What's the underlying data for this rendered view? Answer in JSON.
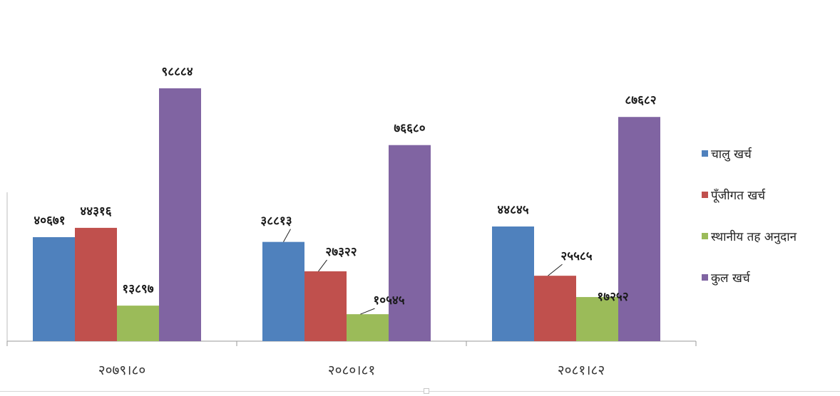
{
  "chart_data": {
    "type": "bar",
    "categories": [
      "२०७९।८०",
      "२०८०।८१",
      "२०८१।८२"
    ],
    "series": [
      {
        "name": "चालु खर्च",
        "color": "#4F81BD",
        "values": [
          40671,
          38813,
          44845
        ],
        "labels": [
          "४०६७१",
          "३८८१३",
          "४४८४५"
        ]
      },
      {
        "name": "पूँजीगत खर्च",
        "color": "#C0504D",
        "values": [
          44316,
          27322,
          25585
        ],
        "labels": [
          "४४३१६",
          "२७३२२",
          "२५५८५"
        ]
      },
      {
        "name": "स्थानीय तह अनुदान",
        "color": "#9BBB59",
        "values": [
          13897,
          10545,
          17252
        ],
        "labels": [
          "१३८९७",
          "१०५४५",
          "१७२५२"
        ]
      },
      {
        "name": "कुल खर्च",
        "color": "#8064A2",
        "values": [
          98884,
          76680,
          87682
        ],
        "labels": [
          "९८८८४",
          "७६६८०",
          "८७६८२"
        ]
      }
    ],
    "ylim": [
      0,
      98884
    ],
    "grid": false,
    "legend_position": "right"
  }
}
